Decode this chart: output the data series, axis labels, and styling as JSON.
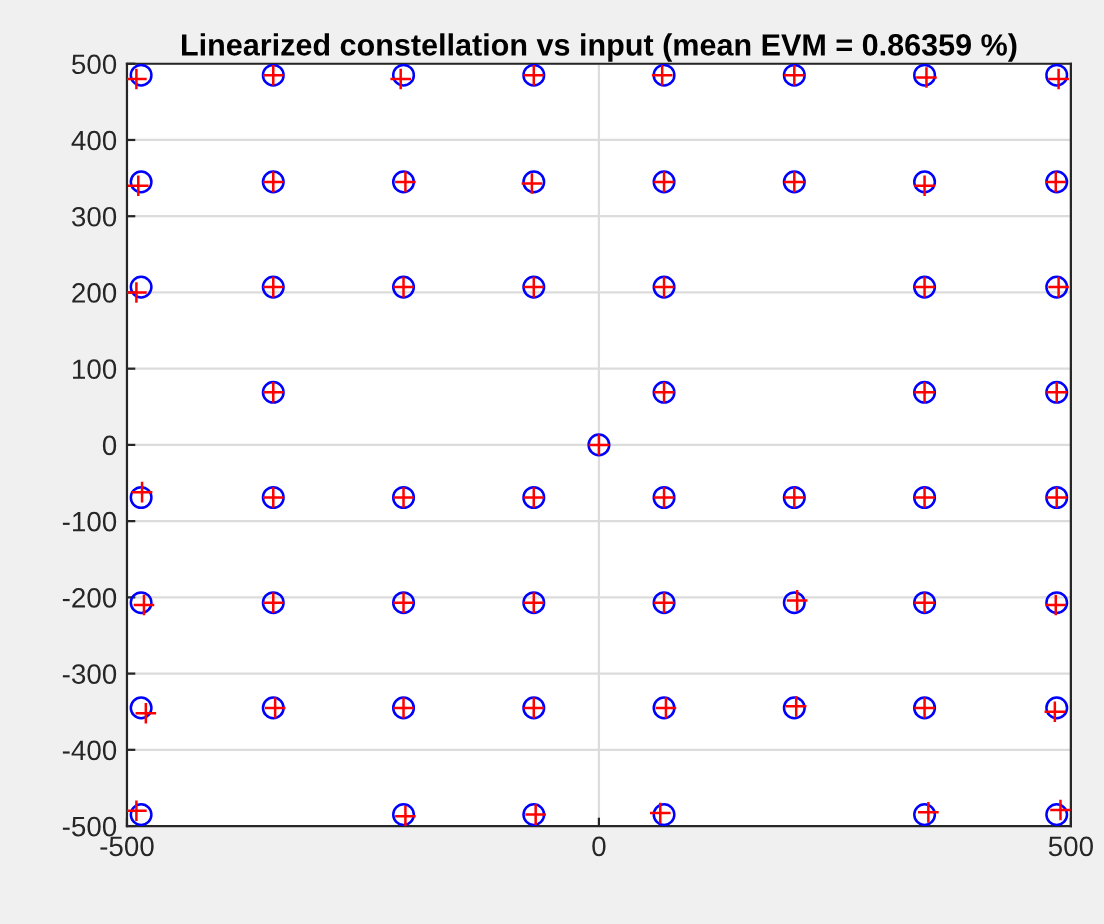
{
  "chart_data": {
    "type": "scatter",
    "title": "Linearized constellation vs input (mean EVM = 0.86359 %)",
    "xlim": [
      -500,
      500
    ],
    "ylim": [
      -500,
      500
    ],
    "xticks": [
      -500,
      0,
      500
    ],
    "yticks": [
      -500,
      -400,
      -300,
      -200,
      -100,
      0,
      100,
      200,
      300,
      400,
      500
    ],
    "grid": true,
    "series": [
      {
        "color": "#0000ff",
        "marker": "circle",
        "x": [
          -485,
          -345,
          -207,
          -69,
          69,
          207,
          345,
          485,
          -485,
          -345,
          -207,
          -69,
          69,
          207,
          345,
          485,
          -485,
          -345,
          -207,
          -69,
          69,
          345,
          485,
          -345,
          69,
          345,
          485,
          0,
          -485,
          -345,
          -207,
          -69,
          69,
          207,
          345,
          485,
          -485,
          -345,
          -207,
          -69,
          69,
          207,
          345,
          485,
          -485,
          -345,
          -207,
          -69,
          69,
          207,
          345,
          485,
          -485,
          -207,
          -69,
          69,
          345,
          485
        ],
        "values": [
          485,
          485,
          485,
          485,
          485,
          485,
          485,
          485,
          345,
          345,
          345,
          345,
          345,
          345,
          345,
          345,
          207,
          207,
          207,
          207,
          207,
          207,
          207,
          69,
          69,
          69,
          69,
          0,
          -69,
          -69,
          -69,
          -69,
          -69,
          -69,
          -69,
          -69,
          -207,
          -207,
          -207,
          -207,
          -207,
          -207,
          -207,
          -207,
          -345,
          -345,
          -345,
          -345,
          -345,
          -345,
          -345,
          -345,
          -485,
          -485,
          -485,
          -485,
          -485,
          -485
        ]
      },
      {
        "color": "#ff0000",
        "marker": "cross",
        "x": [
          -490,
          -345,
          -210,
          -69,
          67,
          207,
          347,
          487,
          -488,
          -345,
          -205,
          -71,
          69,
          207,
          345,
          484,
          -490,
          -345,
          -207,
          -69,
          69,
          345,
          487,
          -345,
          69,
          345,
          485,
          0,
          -484,
          -345,
          -207,
          -69,
          69,
          207,
          345,
          485,
          -482,
          -345,
          -207,
          -69,
          69,
          210,
          345,
          484,
          -480,
          -343,
          -207,
          -69,
          71,
          209,
          345,
          483,
          -490,
          -205,
          -67,
          65,
          349,
          489
        ],
        "values": [
          480,
          485,
          480,
          485,
          485,
          485,
          482,
          480,
          340,
          345,
          345,
          343,
          345,
          345,
          340,
          345,
          200,
          207,
          207,
          207,
          207,
          207,
          207,
          69,
          69,
          69,
          69,
          0,
          -62,
          -69,
          -69,
          -69,
          -69,
          -69,
          -69,
          -69,
          -210,
          -207,
          -207,
          -207,
          -207,
          -204,
          -207,
          -210,
          -352,
          -345,
          -345,
          -345,
          -345,
          -343,
          -345,
          -350,
          -480,
          -487,
          -485,
          -483,
          -482,
          -479
        ]
      }
    ]
  }
}
